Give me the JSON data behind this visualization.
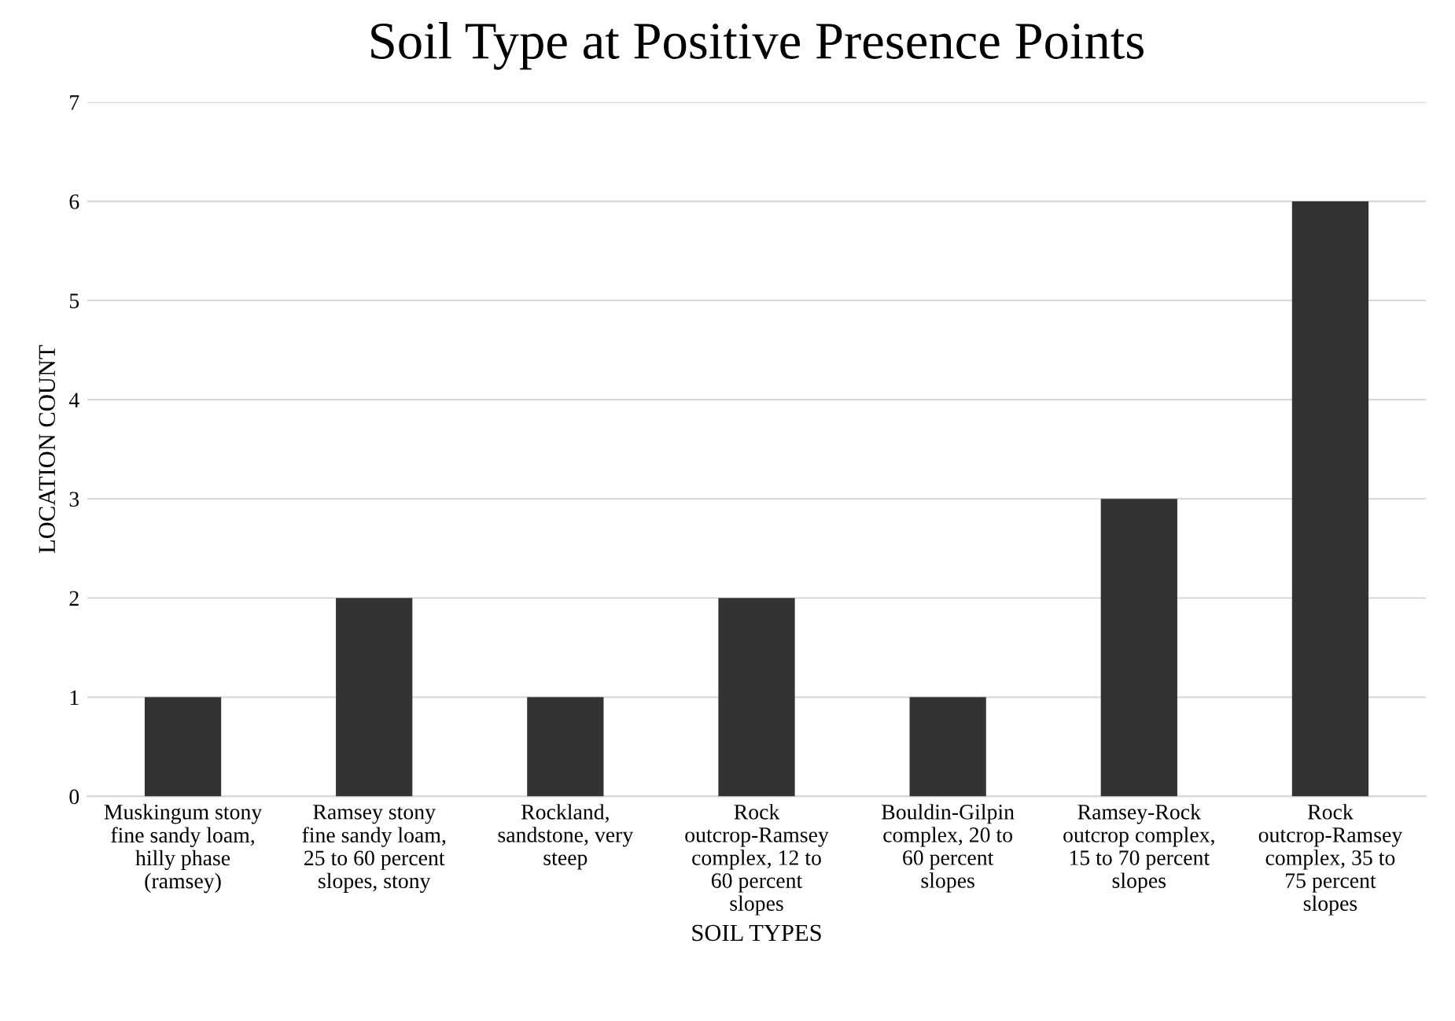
{
  "chart_data": {
    "type": "bar",
    "title": "Soil Type at Positive Presence Points",
    "xlabel": "SOIL TYPES",
    "ylabel": "LOCATION COUNT",
    "categories": [
      "Muskingum stony fine sandy loam, hilly phase (ramsey)",
      "Ramsey stony fine sandy loam, 25 to 60 percent slopes, stony",
      "Rockland, sandstone, very steep",
      "Rock outcrop-Ramsey complex, 12 to 60 percent slopes",
      "Bouldin-Gilpin complex, 20 to 60 percent slopes",
      "Ramsey-Rock outcrop complex, 15 to 70 percent slopes",
      "Rock outcrop-Ramsey complex, 35 to 75 percent slopes"
    ],
    "values": [
      1,
      2,
      1,
      2,
      1,
      3,
      6
    ],
    "color": "#333333",
    "ylim": [
      0,
      7
    ],
    "yticks": [
      0,
      1,
      2,
      3,
      4,
      5,
      6,
      7
    ],
    "grid": "y"
  }
}
